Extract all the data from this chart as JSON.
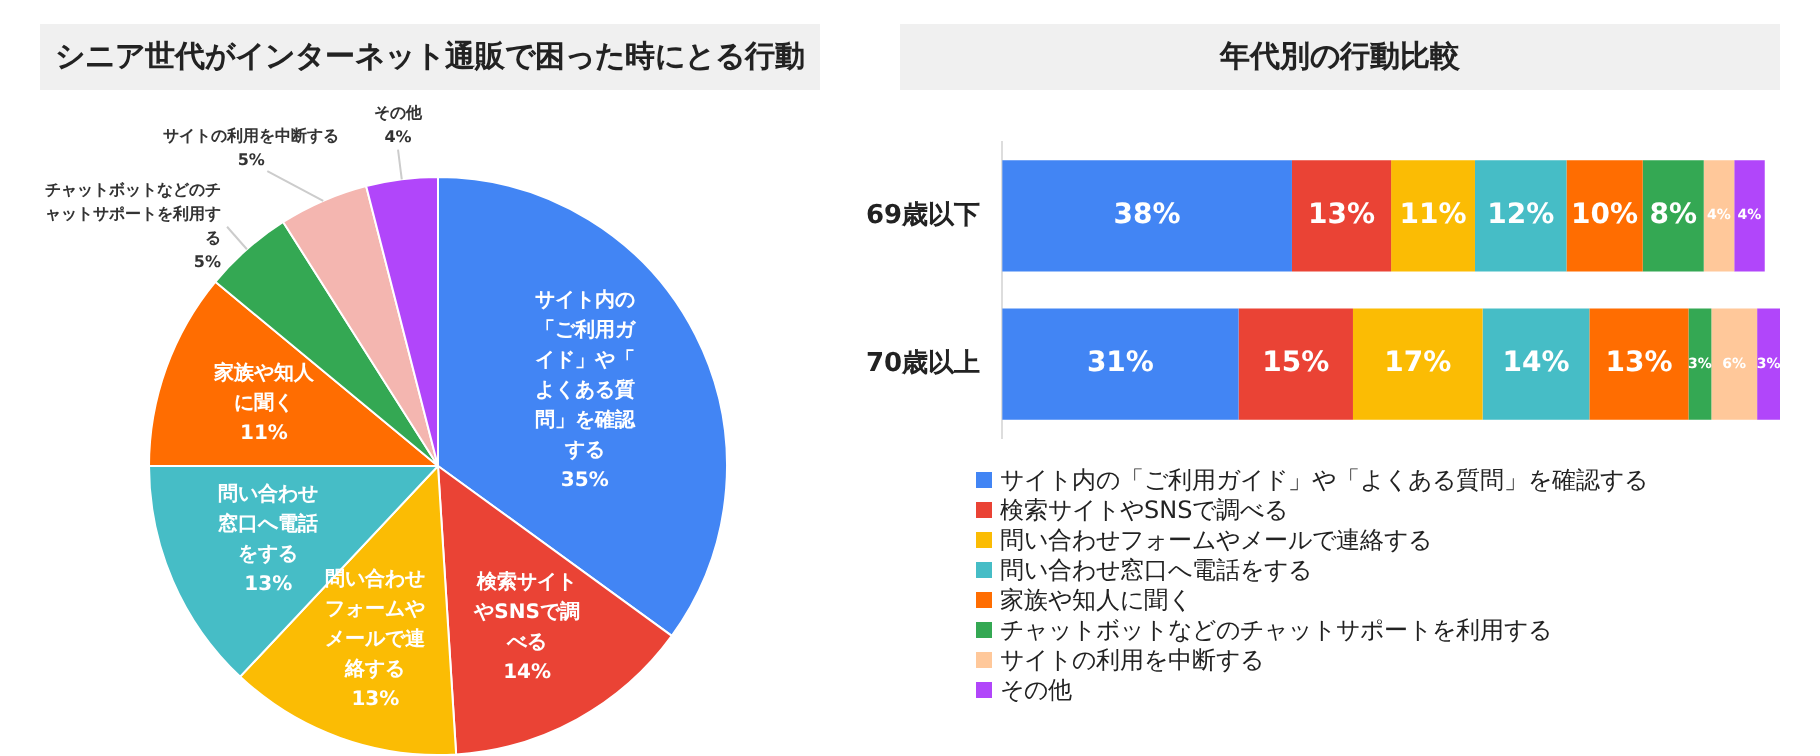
{
  "chart_data": [
    {
      "type": "pie",
      "title": "シニア世代がインターネット通販で困った時にとる行動",
      "categories": [
        "サイト内の「ご利用ガイド」や「よくある質問」を確認する",
        "検索サイトやSNSで調べる",
        "問い合わせフォームやメールで連絡する",
        "問い合わせ窓口へ電話をする",
        "家族や知人に聞く",
        "チャットボットなどのチャットサポートを利用する",
        "サイトの利用を中断する",
        "その他"
      ],
      "values": [
        35,
        14,
        13,
        13,
        11,
        5,
        5,
        4
      ],
      "value_labels": [
        "35%",
        "14%",
        "13%",
        "13%",
        "11%",
        "5%",
        "5%",
        "4%"
      ],
      "colors": [
        "#4285f4",
        "#ea4335",
        "#fbbc04",
        "#46bdc6",
        "#ff6d01",
        "#34a853",
        "#f4b6b0",
        "#b146fa"
      ],
      "legend": false
    },
    {
      "type": "bar",
      "title": "年代別の行動比較",
      "orientation": "horizontal",
      "stacked": true,
      "categories": [
        "69歳以下",
        "70歳以上"
      ],
      "legend": "bottom",
      "tick_labels": "y",
      "series": [
        {
          "name": "サイト内の「ご利用ガイド」や「よくある質問」を確認する",
          "color": "#4285f4",
          "values": [
            38,
            31
          ],
          "value_labels": [
            "38%",
            "31%"
          ]
        },
        {
          "name": "検索サイトやSNSで調べる",
          "color": "#ea4335",
          "values": [
            13,
            15
          ],
          "value_labels": [
            "13%",
            "15%"
          ]
        },
        {
          "name": "問い合わせフォームやメールで連絡する",
          "color": "#fbbc04",
          "values": [
            11,
            17
          ],
          "value_labels": [
            "11%",
            "17%"
          ]
        },
        {
          "name": "問い合わせ窓口へ電話をする",
          "color": "#46bdc6",
          "values": [
            12,
            14
          ],
          "value_labels": [
            "12%",
            "14%"
          ]
        },
        {
          "name": "家族や知人に聞く",
          "color": "#ff6d01",
          "values": [
            10,
            13
          ],
          "value_labels": [
            "10%",
            "13%"
          ]
        },
        {
          "name": "チャットボットなどのチャットサポートを利用する",
          "color": "#34a853",
          "values": [
            8,
            3
          ],
          "value_labels": [
            "8%",
            "3%"
          ]
        },
        {
          "name": "サイトの利用を中断する",
          "color": "#ffc89a",
          "values": [
            4,
            6
          ],
          "value_labels": [
            "4%",
            "6%"
          ]
        },
        {
          "name": "その他",
          "color": "#b146fa",
          "values": [
            4,
            3
          ],
          "value_labels": [
            "4%",
            "3%"
          ]
        }
      ]
    }
  ]
}
